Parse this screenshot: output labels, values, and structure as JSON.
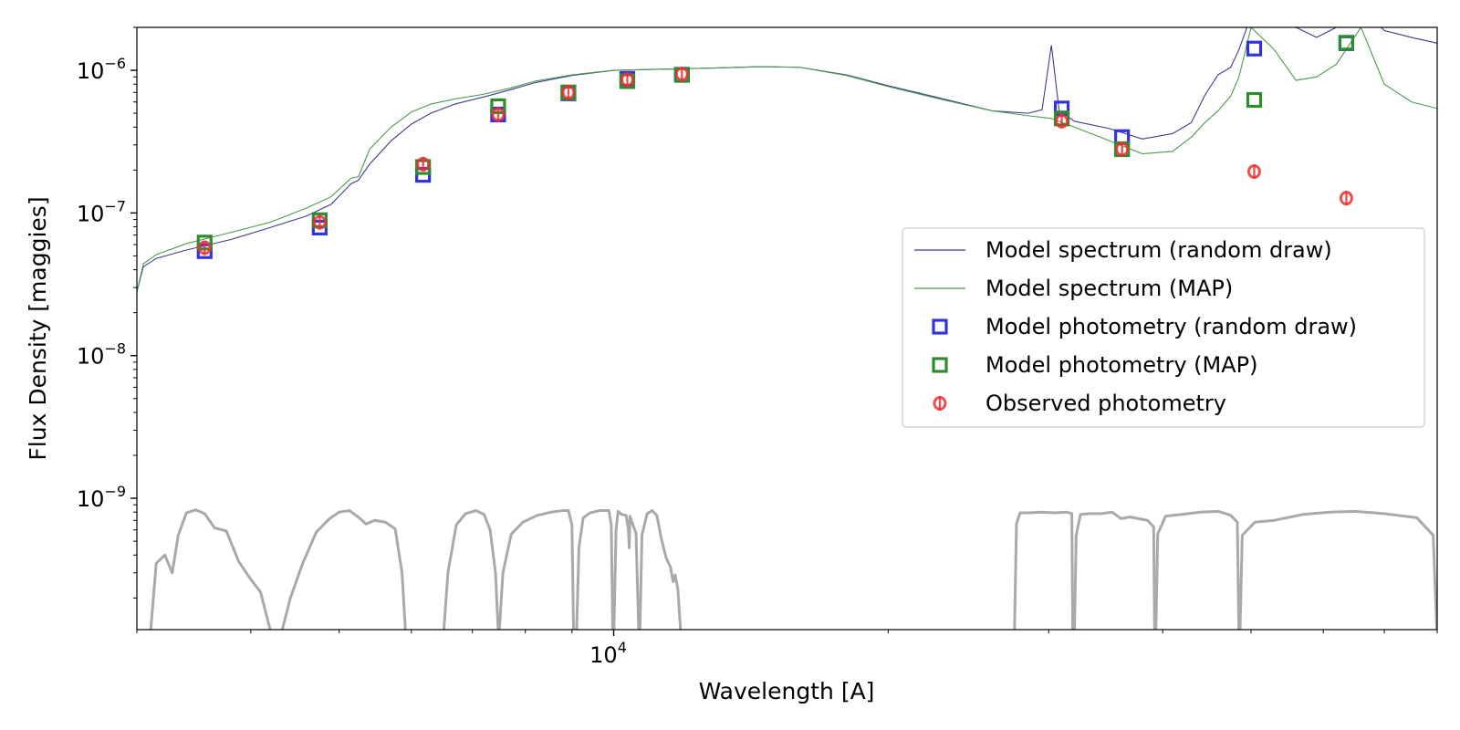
{
  "chart_data": {
    "type": "scatter",
    "xlabel": "Wavelength [A]",
    "ylabel": "Flux Density [maggies]",
    "xscale": "log",
    "yscale": "log",
    "xlim": [
      3000,
      80000
    ],
    "ylim": [
      1.2e-10,
      2e-06
    ],
    "x_ticks": [
      {
        "value": 10000,
        "base": "10",
        "exp": "4"
      }
    ],
    "y_ticks": [
      {
        "value": 1e-09,
        "base": "10",
        "exp": "−9"
      },
      {
        "value": 1e-08,
        "base": "10",
        "exp": "−8"
      },
      {
        "value": 1e-07,
        "base": "10",
        "exp": "−7"
      },
      {
        "value": 1e-06,
        "base": "10",
        "exp": "−6"
      }
    ],
    "grid": false,
    "legend_position": "center-right",
    "legend": [
      {
        "label": "Model spectrum (random draw)",
        "kind": "line",
        "color": "#3b3b8f"
      },
      {
        "label": "Model spectrum (MAP)",
        "kind": "line",
        "color": "#4f9a4f"
      },
      {
        "label": "Model photometry (random draw)",
        "kind": "square",
        "color": "#3333dd"
      },
      {
        "label": "Model photometry (MAP)",
        "kind": "square",
        "color": "#2e8b2e"
      },
      {
        "label": "Observed photometry",
        "kind": "errorbar",
        "color": "#e83333"
      }
    ],
    "series": [
      {
        "name": "Model spectrum (random draw)",
        "kind": "line",
        "color": "#3b3b8f",
        "points": [
          [
            3000,
            2.8e-08
          ],
          [
            3050,
            4.2e-08
          ],
          [
            3150,
            4.8e-08
          ],
          [
            3400,
            5.5e-08
          ],
          [
            3800,
            6.5e-08
          ],
          [
            4200,
            7.9e-08
          ],
          [
            4600,
            9.5e-08
          ],
          [
            4900,
            1.15e-07
          ],
          [
            5150,
            1.6e-07
          ],
          [
            5250,
            1.7e-07
          ],
          [
            5400,
            2.2e-07
          ],
          [
            5700,
            3.2e-07
          ],
          [
            6000,
            4.2e-07
          ],
          [
            6300,
            5e-07
          ],
          [
            6700,
            5.8e-07
          ],
          [
            7200,
            6.5e-07
          ],
          [
            7700,
            7.3e-07
          ],
          [
            8200,
            8.2e-07
          ],
          [
            9000,
            9.2e-07
          ],
          [
            10000,
            1e-06
          ],
          [
            11500,
            1.02e-06
          ],
          [
            13000,
            1.04e-06
          ],
          [
            14500,
            1.06e-06
          ],
          [
            16000,
            1.05e-06
          ],
          [
            18000,
            9.3e-07
          ],
          [
            20000,
            7.8e-07
          ],
          [
            23000,
            6.3e-07
          ],
          [
            26000,
            5.2e-07
          ],
          [
            28500,
            5e-07
          ],
          [
            29500,
            5.3e-07
          ],
          [
            30200,
            1.5e-06
          ],
          [
            30800,
            5.2e-07
          ],
          [
            32000,
            4.4e-07
          ],
          [
            35000,
            3.9e-07
          ],
          [
            38000,
            3.3e-07
          ],
          [
            41000,
            3.6e-07
          ],
          [
            43000,
            4.3e-07
          ],
          [
            44500,
            6.7e-07
          ],
          [
            46000,
            9.3e-07
          ],
          [
            47500,
            1.05e-06
          ],
          [
            48500,
            1.4e-06
          ],
          [
            50000,
            2.4e-06
          ],
          [
            53000,
            2.3e-06
          ],
          [
            56000,
            2e-06
          ],
          [
            59000,
            1.7e-06
          ],
          [
            62000,
            2e-06
          ],
          [
            66000,
            2.8e-06
          ],
          [
            70000,
            1.9e-06
          ],
          [
            75000,
            1.7e-06
          ],
          [
            80000,
            1.55e-06
          ]
        ]
      },
      {
        "name": "Model spectrum (MAP)",
        "kind": "line",
        "color": "#4f9a4f",
        "points": [
          [
            3000,
            2.8e-08
          ],
          [
            3050,
            4.4e-08
          ],
          [
            3150,
            5.1e-08
          ],
          [
            3400,
            6.1e-08
          ],
          [
            3800,
            7.3e-08
          ],
          [
            4200,
            8.6e-08
          ],
          [
            4600,
            1.08e-07
          ],
          [
            4900,
            1.3e-07
          ],
          [
            5150,
            1.75e-07
          ],
          [
            5250,
            1.8e-07
          ],
          [
            5400,
            2.8e-07
          ],
          [
            5700,
            4e-07
          ],
          [
            6000,
            5.1e-07
          ],
          [
            6300,
            5.8e-07
          ],
          [
            6700,
            6.3e-07
          ],
          [
            7200,
            6.8e-07
          ],
          [
            7700,
            7.5e-07
          ],
          [
            8200,
            8.4e-07
          ],
          [
            9000,
            9.3e-07
          ],
          [
            10000,
            1e-06
          ],
          [
            11500,
            1.02e-06
          ],
          [
            13000,
            1.04e-06
          ],
          [
            14500,
            1.06e-06
          ],
          [
            16000,
            1.05e-06
          ],
          [
            18000,
            9.2e-07
          ],
          [
            20000,
            7.7e-07
          ],
          [
            23000,
            6.2e-07
          ],
          [
            26000,
            5.2e-07
          ],
          [
            28500,
            4.8e-07
          ],
          [
            30200,
            4.6e-07
          ],
          [
            32000,
            4e-07
          ],
          [
            35000,
            3.2e-07
          ],
          [
            38000,
            2.6e-07
          ],
          [
            41000,
            2.7e-07
          ],
          [
            43000,
            3.4e-07
          ],
          [
            44500,
            4.3e-07
          ],
          [
            46000,
            5.2e-07
          ],
          [
            47500,
            6.6e-07
          ],
          [
            48500,
            9e-07
          ],
          [
            50000,
            2e-06
          ],
          [
            53000,
            1.4e-06
          ],
          [
            56000,
            8.5e-07
          ],
          [
            59000,
            9e-07
          ],
          [
            62000,
            1.1e-06
          ],
          [
            66000,
            2e-06
          ],
          [
            70000,
            8e-07
          ],
          [
            75000,
            6e-07
          ],
          [
            80000,
            5.4e-07
          ]
        ]
      },
      {
        "name": "Model photometry (random draw)",
        "kind": "square",
        "color": "#3333dd",
        "points": [
          [
            3560,
            5.4e-08
          ],
          [
            4760,
            7.9e-08
          ],
          [
            6180,
            1.85e-07
          ],
          [
            7470,
            4.9e-07
          ],
          [
            8920,
            6.9e-07
          ],
          [
            10350,
            8.7e-07
          ],
          [
            11880,
            9.3e-07
          ],
          [
            31000,
            5.4e-07
          ],
          [
            36100,
            3.4e-07
          ],
          [
            50400,
            1.42e-06
          ],
          [
            63600,
            1.55e-06
          ]
        ]
      },
      {
        "name": "Model photometry (MAP)",
        "kind": "square",
        "color": "#2e8b2e",
        "points": [
          [
            3560,
            6.2e-08
          ],
          [
            4760,
            8.9e-08
          ],
          [
            6180,
            2.1e-07
          ],
          [
            7470,
            5.6e-07
          ],
          [
            8920,
            7e-07
          ],
          [
            10350,
            8.4e-07
          ],
          [
            11880,
            9.3e-07
          ],
          [
            31000,
            4.6e-07
          ],
          [
            36100,
            2.8e-07
          ],
          [
            50400,
            6.2e-07
          ],
          [
            63600,
            1.56e-06
          ]
        ]
      },
      {
        "name": "Observed photometry",
        "kind": "errorbar",
        "color": "#e83333",
        "points": [
          [
            3560,
            5.7e-08
          ],
          [
            4760,
            8.6e-08
          ],
          [
            6180,
            2.2e-07
          ],
          [
            7470,
            4.9e-07
          ],
          [
            8920,
            7e-07
          ],
          [
            10350,
            8.6e-07
          ],
          [
            11880,
            9.4e-07
          ],
          [
            31000,
            4.4e-07
          ],
          [
            36100,
            2.8e-07
          ],
          [
            50400,
            1.95e-07
          ],
          [
            63600,
            1.27e-07
          ]
        ]
      }
    ],
    "filter_curves": {
      "color": "#a9a9a9",
      "curves": [
        [
          [
            3100,
            1e-10
          ],
          [
            3150,
            3.5e-10
          ],
          [
            3220,
            4e-10
          ],
          [
            3280,
            3e-10
          ],
          [
            3330,
            5.5e-10
          ],
          [
            3400,
            7.9e-10
          ],
          [
            3480,
            8.3e-10
          ],
          [
            3560,
            7.8e-10
          ],
          [
            3650,
            6.2e-10
          ],
          [
            3760,
            5.9e-10
          ],
          [
            3880,
            3.6e-10
          ],
          [
            4000,
            2.7e-10
          ],
          [
            4100,
            2.2e-10
          ],
          [
            4200,
            1.2e-10
          ],
          [
            4300,
            1e-10
          ]
        ],
        [
          [
            4300,
            1e-10
          ],
          [
            4420,
            2e-10
          ],
          [
            4560,
            3.5e-10
          ],
          [
            4720,
            5.8e-10
          ],
          [
            4880,
            7.2e-10
          ],
          [
            5000,
            8e-10
          ],
          [
            5130,
            8.2e-10
          ],
          [
            5260,
            7.3e-10
          ],
          [
            5350,
            6.6e-10
          ],
          [
            5470,
            7e-10
          ],
          [
            5620,
            6.8e-10
          ],
          [
            5760,
            6.1e-10
          ],
          [
            5860,
            3e-10
          ],
          [
            5920,
            1e-10
          ]
        ],
        [
          [
            6500,
            1e-10
          ],
          [
            6580,
            3e-10
          ],
          [
            6720,
            6.5e-10
          ],
          [
            6880,
            7.8e-10
          ],
          [
            7060,
            8.2e-10
          ],
          [
            7210,
            7.7e-10
          ],
          [
            7320,
            6e-10
          ],
          [
            7420,
            3e-10
          ],
          [
            7480,
            1e-10
          ]
        ],
        [
          [
            7480,
            1e-10
          ],
          [
            7560,
            3e-10
          ],
          [
            7720,
            5.6e-10
          ],
          [
            7950,
            6.8e-10
          ],
          [
            8250,
            7.6e-10
          ],
          [
            8550,
            8e-10
          ],
          [
            8800,
            8.2e-10
          ],
          [
            8920,
            8.2e-10
          ],
          [
            9000,
            6.5e-10
          ],
          [
            9040,
            1e-10
          ]
        ],
        [
          [
            9100,
            1e-10
          ],
          [
            9160,
            4.5e-10
          ],
          [
            9260,
            7.3e-10
          ],
          [
            9420,
            7.9e-10
          ],
          [
            9660,
            8.2e-10
          ],
          [
            9880,
            8.2e-10
          ],
          [
            9940,
            6.5e-10
          ],
          [
            9980,
            1e-10
          ]
        ],
        [
          [
            10000,
            1e-10
          ],
          [
            10060,
            6e-10
          ],
          [
            10110,
            8.1e-10
          ],
          [
            10200,
            7.7e-10
          ],
          [
            10320,
            7.6e-10
          ],
          [
            10380,
            6e-10
          ],
          [
            10400,
            4.5e-10
          ],
          [
            10420,
            7.5e-10
          ],
          [
            10480,
            6.7e-10
          ],
          [
            10580,
            5.7e-10
          ],
          [
            10660,
            1e-10
          ]
        ],
        [
          [
            10680,
            1e-10
          ],
          [
            10740,
            5.5e-10
          ],
          [
            10880,
            7.8e-10
          ],
          [
            11020,
            8.2e-10
          ],
          [
            11150,
            7.6e-10
          ],
          [
            11280,
            5.2e-10
          ],
          [
            11420,
            3.8e-10
          ],
          [
            11540,
            3.3e-10
          ],
          [
            11620,
            2.6e-10
          ],
          [
            11680,
            2.9e-10
          ],
          [
            11760,
            2.3e-10
          ],
          [
            11860,
            1e-10
          ]
        ],
        [
          [
            27500,
            1e-10
          ],
          [
            27650,
            6.6e-10
          ],
          [
            27900,
            7.9e-10
          ],
          [
            28600,
            7.9e-10
          ],
          [
            29400,
            8e-10
          ],
          [
            30500,
            7.9e-10
          ],
          [
            31400,
            8e-10
          ],
          [
            31800,
            7.8e-10
          ],
          [
            31880,
            1e-10
          ]
        ],
        [
          [
            32000,
            1e-10
          ],
          [
            32150,
            5.5e-10
          ],
          [
            32500,
            7.7e-10
          ],
          [
            33300,
            7.8e-10
          ],
          [
            34300,
            7.8e-10
          ],
          [
            35200,
            8e-10
          ],
          [
            36000,
            7.2e-10
          ],
          [
            36800,
            7.4e-10
          ],
          [
            38500,
            7e-10
          ],
          [
            39100,
            6.3e-10
          ],
          [
            39200,
            1e-10
          ]
        ],
        [
          [
            39300,
            1e-10
          ],
          [
            39500,
            5.6e-10
          ],
          [
            40300,
            7.5e-10
          ],
          [
            42000,
            7.7e-10
          ],
          [
            44000,
            8e-10
          ],
          [
            46000,
            8.1e-10
          ],
          [
            47500,
            7.6e-10
          ],
          [
            48300,
            6.8e-10
          ],
          [
            48500,
            1e-10
          ]
        ],
        [
          [
            48600,
            1e-10
          ],
          [
            48900,
            5.5e-10
          ],
          [
            50500,
            6.8e-10
          ],
          [
            53000,
            7e-10
          ],
          [
            57000,
            7.7e-10
          ],
          [
            61000,
            8e-10
          ],
          [
            65000,
            8.1e-10
          ],
          [
            70000,
            7.8e-10
          ],
          [
            76000,
            7.3e-10
          ],
          [
            79200,
            5.5e-10
          ],
          [
            80000,
            1e-10
          ]
        ]
      ]
    }
  }
}
